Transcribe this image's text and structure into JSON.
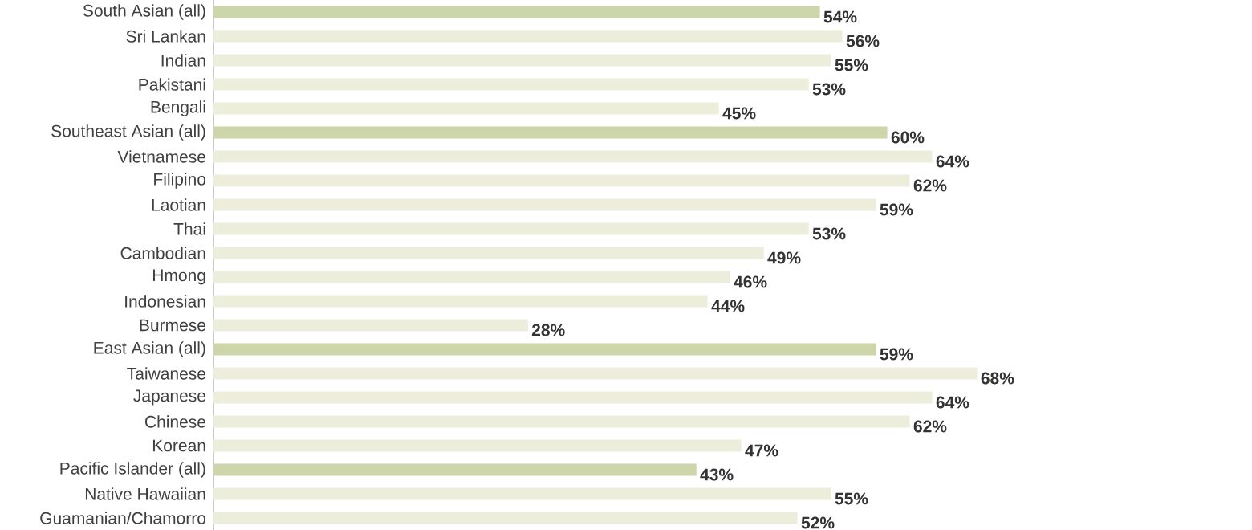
{
  "chart_data": {
    "type": "bar",
    "orientation": "horizontal",
    "categories": [
      "South Asian (all)",
      "Sri Lankan",
      "Indian",
      "Pakistani",
      "Bengali",
      "Southeast Asian (all)",
      "Vietnamese",
      "Filipino",
      "Laotian",
      "Thai",
      "Cambodian",
      "Hmong",
      "Indonesian",
      "Burmese",
      "East Asian (all)",
      "Taiwanese",
      "Japanese",
      "Chinese",
      "Korean",
      "Pacific Islander (all)",
      "Native Hawaiian",
      "Guamanian/Chamorro"
    ],
    "values": [
      54,
      56,
      55,
      53,
      45,
      60,
      64,
      62,
      59,
      53,
      49,
      46,
      44,
      28,
      59,
      68,
      64,
      62,
      47,
      43,
      55,
      52
    ],
    "value_labels": [
      "54%",
      "56%",
      "55%",
      "53%",
      "45%",
      "60%",
      "64%",
      "62%",
      "59%",
      "53%",
      "49%",
      "46%",
      "44%",
      "28%",
      "59%",
      "68%",
      "64%",
      "62%",
      "47%",
      "43%",
      "55%",
      "52%"
    ],
    "colors": [
      "#cdd6aa",
      "#ecedda",
      "#ecedda",
      "#ecedda",
      "#ecedda",
      "#cdd6aa",
      "#ecedda",
      "#ecedda",
      "#ecedda",
      "#ecedda",
      "#ecedda",
      "#ecedda",
      "#ecedda",
      "#ecedda",
      "#cdd6aa",
      "#ecedda",
      "#ecedda",
      "#ecedda",
      "#ecedda",
      "#cdd6aa",
      "#ecedda",
      "#ecedda"
    ]
  }
}
